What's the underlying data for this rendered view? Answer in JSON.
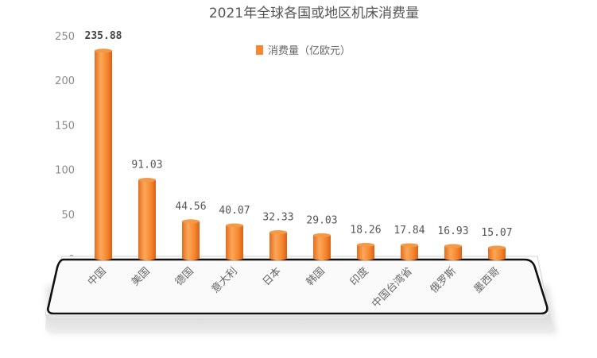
{
  "chart_data": {
    "type": "bar",
    "title": "2021年全球各国或地区机床消费量",
    "legend": "消费量（亿欧元）",
    "legend_position": "top-center",
    "categories": [
      "中国",
      "美国",
      "德国",
      "意大利",
      "日本",
      "韩国",
      "印度",
      "中国台湾省",
      "俄罗斯",
      "墨西哥"
    ],
    "series": [
      {
        "name": "消费量（亿欧元）",
        "values": [
          235.88,
          91.03,
          44.56,
          40.07,
          32.33,
          29.03,
          18.26,
          17.84,
          16.93,
          15.07
        ],
        "value_labels": [
          "235.88",
          "91.03",
          "44.56",
          "40.07",
          "32.33",
          "29.03",
          "18.26",
          "17.84",
          "16.93",
          "15.07"
        ]
      }
    ],
    "y_ticks": [
      "0",
      "50",
      "100",
      "150",
      "200",
      "250"
    ],
    "ylim": [
      0,
      250
    ],
    "grid": false,
    "colors": {
      "bar_main": "#F7882F",
      "bar_light": "#FBB36B",
      "bar_dark": "#D9621A",
      "floor_border": "#111111",
      "floor_fill": "#FAFAFA"
    }
  }
}
